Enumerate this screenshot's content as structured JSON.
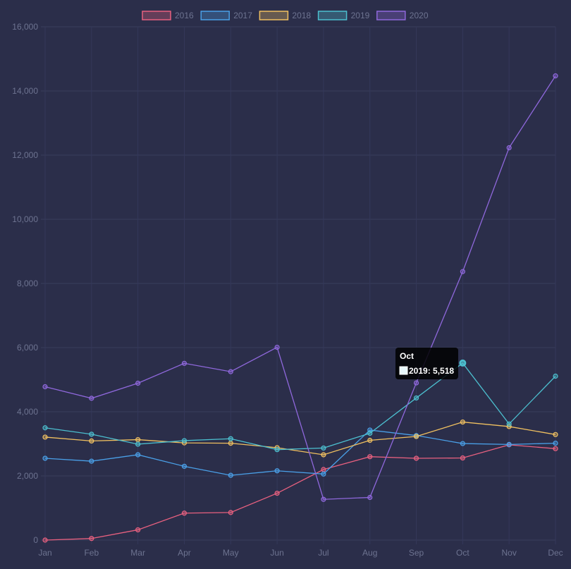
{
  "chart_data": {
    "type": "line",
    "categories": [
      "Jan",
      "Feb",
      "Mar",
      "Apr",
      "May",
      "Jun",
      "Jul",
      "Aug",
      "Sep",
      "Oct",
      "Nov",
      "Dec"
    ],
    "ylim": [
      0,
      16000
    ],
    "yticks": [
      0,
      2000,
      4000,
      6000,
      8000,
      10000,
      12000,
      14000,
      16000
    ],
    "ytick_labels": [
      "0",
      "2,000",
      "4,000",
      "6,000",
      "8,000",
      "10,000",
      "12,000",
      "14,000",
      "16,000"
    ],
    "grid": true,
    "legend_position": "top-center",
    "series": [
      {
        "name": "2016",
        "color": "#e8607f",
        "values": [
          0,
          50,
          320,
          840,
          860,
          1460,
          2200,
          2600,
          2550,
          2560,
          2970,
          2850
        ]
      },
      {
        "name": "2017",
        "color": "#4aa0e8",
        "values": [
          2550,
          2460,
          2660,
          2300,
          2020,
          2160,
          2060,
          3430,
          3260,
          3010,
          2980,
          3020
        ]
      },
      {
        "name": "2018",
        "color": "#f0c060",
        "values": [
          3210,
          3090,
          3130,
          3030,
          3020,
          2880,
          2660,
          3110,
          3230,
          3680,
          3540,
          3290
        ]
      },
      {
        "name": "2019",
        "color": "#4cbfcf",
        "values": [
          3500,
          3300,
          2990,
          3100,
          3160,
          2820,
          2870,
          3330,
          4430,
          5518,
          3620,
          5110
        ]
      },
      {
        "name": "2020",
        "color": "#8f68dc",
        "values": [
          4780,
          4420,
          4890,
          5510,
          5250,
          6010,
          1270,
          1330,
          4900,
          8370,
          12230,
          14470
        ]
      }
    ],
    "tooltip": {
      "title": "Oct",
      "label": "2019: 5,518",
      "series_index": 3,
      "category_index": 9
    }
  }
}
